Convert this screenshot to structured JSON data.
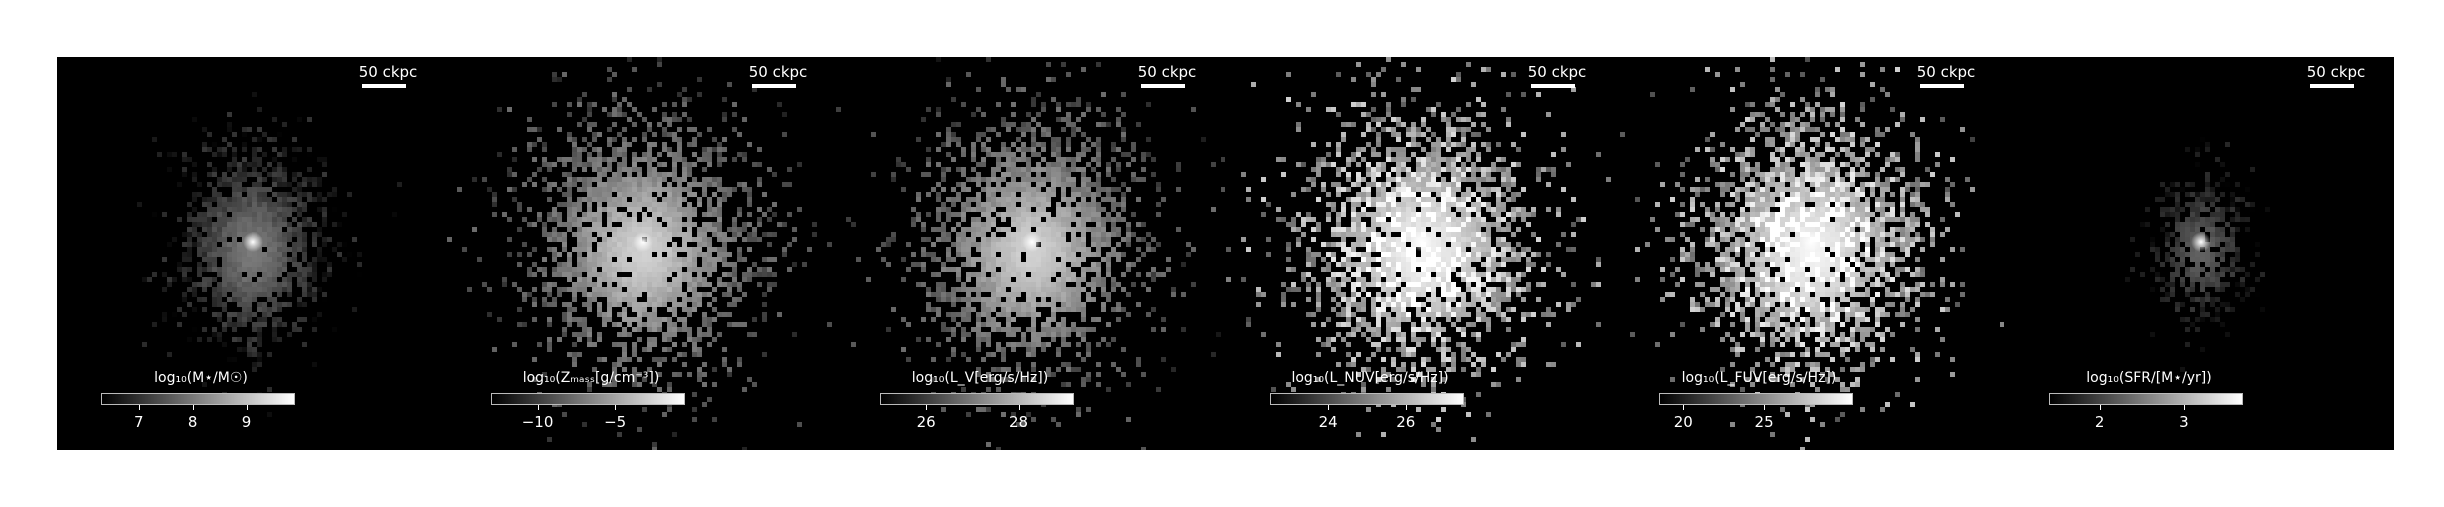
{
  "chart_data": {
    "type": "heatmap",
    "panels": [
      {
        "scalebar": "50 ckpc",
        "colorbar_label": "log₁₀(M⋆/M☉)",
        "ticks": [
          7,
          8,
          9
        ],
        "range": [
          6.3,
          9.9
        ],
        "cmap": "gray",
        "kind": "compact"
      },
      {
        "scalebar": "50 ckpc",
        "colorbar_label": "log₁₀(Zₘₐₛₛ[g/cm⁻³])",
        "ticks": [
          "−10",
          "−5"
        ],
        "tick_values": [
          -10,
          -5
        ],
        "range": [
          -13.0,
          -0.5
        ],
        "cmap": "gray",
        "kind": "spread"
      },
      {
        "scalebar": "50 ckpc",
        "colorbar_label": "log₁₀(L_V[erg/s/Hz])",
        "ticks": [
          26,
          28
        ],
        "range": [
          25.0,
          29.2
        ],
        "cmap": "gray",
        "kind": "spread"
      },
      {
        "scalebar": "50 ckpc",
        "colorbar_label": "log₁₀(L_NUV[erg/s/Hz])",
        "ticks": [
          24,
          26
        ],
        "range": [
          22.5,
          27.5
        ],
        "cmap": "gray",
        "kind": "spread-bright"
      },
      {
        "scalebar": "50 ckpc",
        "colorbar_label": "log₁₀(L_FUV[erg/s/Hz])",
        "ticks": [
          20,
          25
        ],
        "range": [
          18.5,
          30.5
        ],
        "cmap": "gray",
        "kind": "spread-bright"
      },
      {
        "scalebar": "50 ckpc",
        "colorbar_label": "log₁₀(SFR/[M⋆/yr])",
        "ticks": [
          2,
          3
        ],
        "range": [
          1.4,
          3.7
        ],
        "cmap": "gray",
        "kind": "sparse"
      }
    ]
  }
}
